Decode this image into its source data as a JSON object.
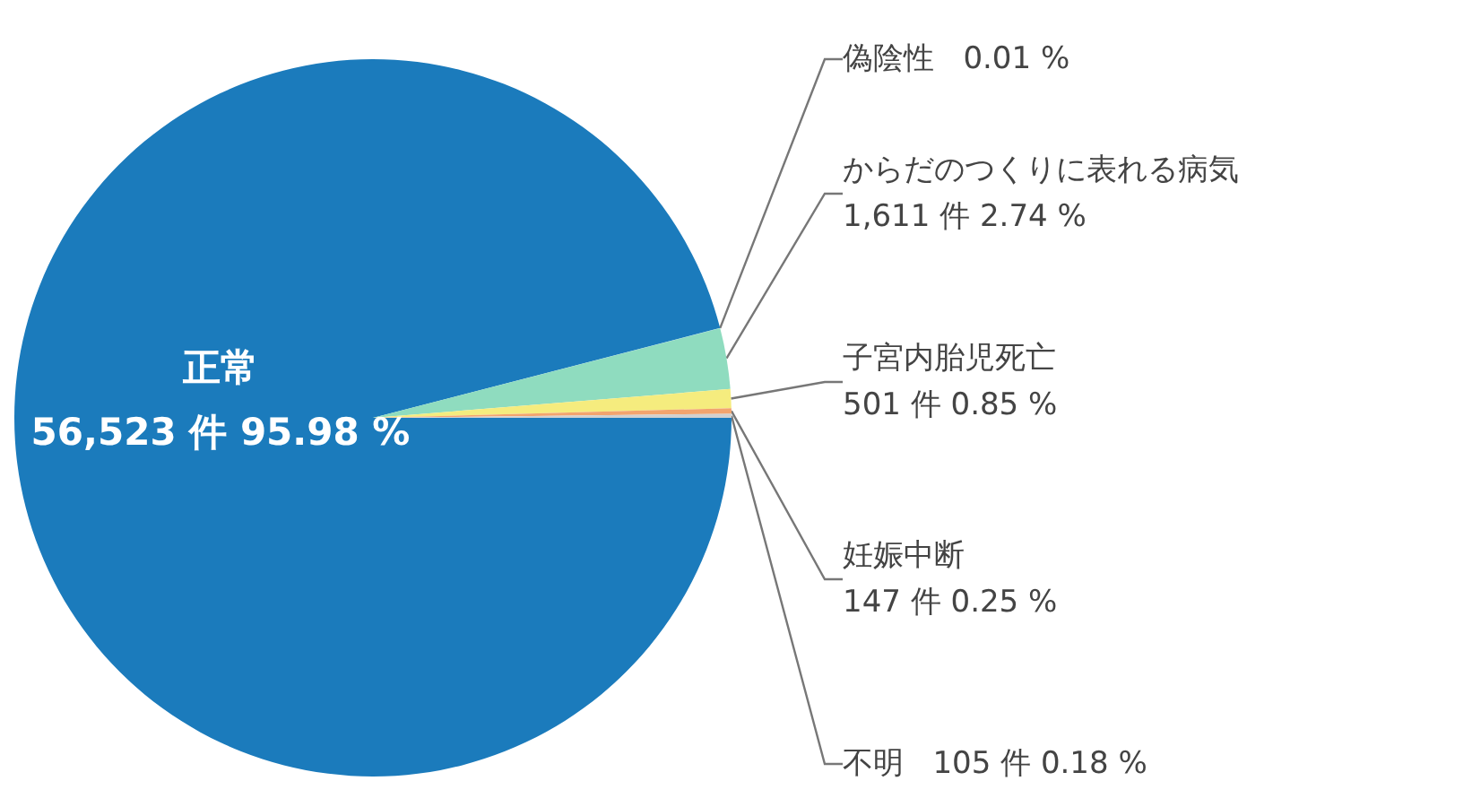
{
  "chart_data": {
    "type": "pie",
    "categories": [
      "正常",
      "偽陰性",
      "からだのつくりに表れる病気",
      "子宮内胎児死亡",
      "妊娠中断",
      "不明"
    ],
    "values": [
      95.98,
      0.01,
      2.74,
      0.85,
      0.25,
      0.18
    ],
    "colors": [
      "#1b7bbc",
      "#6fb6e0",
      "#8fdcbf",
      "#f5ec7e",
      "#f2a46e",
      "#d0d0d0"
    ],
    "value_labels": [
      "56,523 件 95.98 %",
      "0.01 %",
      "1,611 件 2.74 %",
      "501 件 0.85 %",
      "147 件 0.25 %",
      "105 件 0.18 %"
    ],
    "legend": false
  }
}
